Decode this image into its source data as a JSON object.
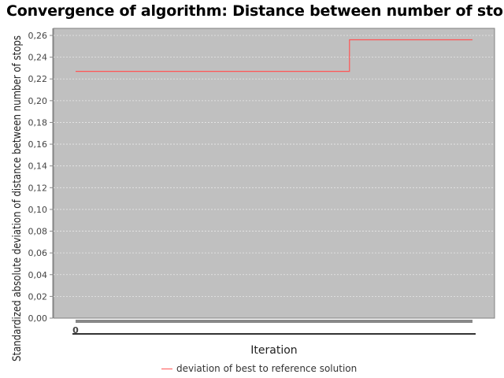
{
  "chart_data": {
    "type": "line",
    "title": "Convergence of algorithm: Distance between number of stops",
    "xlabel": "Iteration",
    "ylabel": "Standardized absolute deviation of distance between number of stops",
    "ylim": [
      0,
      0.26
    ],
    "yticks": [
      "0,00",
      "0,02",
      "0,04",
      "0,06",
      "0,08",
      "0,10",
      "0,12",
      "0,14",
      "0,16",
      "0,18",
      "0,20",
      "0,22",
      "0,24",
      "0,26"
    ],
    "xticks": [
      "0"
    ],
    "grid": true,
    "legend_position": "bottom",
    "series": [
      {
        "name": "deviation of best to reference solution",
        "color": "#ff5555",
        "step": true,
        "x": [
          0,
          0.69,
          0.69,
          1.0
        ],
        "y": [
          0.227,
          0.227,
          0.256,
          0.256
        ]
      }
    ]
  }
}
